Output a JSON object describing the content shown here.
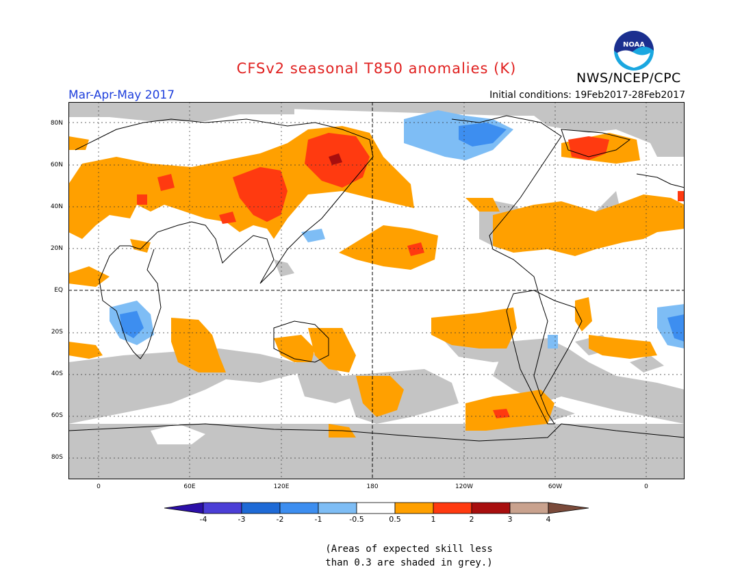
{
  "title": "CFSv2 seasonal T850 anomalies (K)",
  "agency": "NWS/NCEP/CPC",
  "season": "Mar-Apr-May 2017",
  "initial_conditions": "Initial conditions: 19Feb2017-28Feb2017",
  "logo_text": "NOAA",
  "lat_labels": [
    "80N",
    "60N",
    "40N",
    "20N",
    "EQ",
    "20S",
    "40S",
    "60S",
    "80S"
  ],
  "lon_labels": [
    "0",
    "60E",
    "120E",
    "180",
    "120W",
    "60W",
    "0"
  ],
  "colorbar": {
    "labels": [
      "-4",
      "-3",
      "-2",
      "-1",
      "-0.5",
      "0.5",
      "1",
      "2",
      "3",
      "4"
    ],
    "colors": [
      "#2c10a8",
      "#4b3ed6",
      "#1e6ad6",
      "#3d8ef0",
      "#7ebdf5",
      "#ffffff",
      "#ffa000",
      "#ff3a10",
      "#a80e0e",
      "#c9a28e",
      "#7a4a3a"
    ]
  },
  "note": [
    "(Areas of expected skill less",
    "than 0.3 are shaded in grey.)"
  ],
  "colors": {
    "grey": "#c4c4c4",
    "orange": "#ffa000",
    "red": "#ff3a10",
    "darkred": "#a80e0e",
    "lightblue": "#7ebdf5",
    "blue": "#3d8ef0",
    "title": "#e0201f",
    "season": "#1e3fdc"
  }
}
